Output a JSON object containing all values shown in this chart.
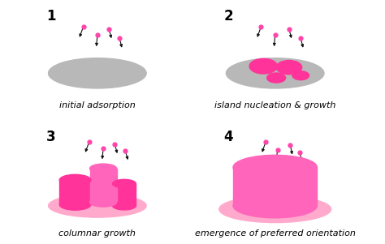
{
  "background_color": "#ffffff",
  "panel_labels": [
    "1",
    "2",
    "3",
    "4"
  ],
  "captions": [
    "initial adsorption",
    "island nucleation & growth",
    "columnar growth",
    "emergence of preferred orientation"
  ],
  "gray_color": "#b8b8b8",
  "pink_light": "#ffaacc",
  "pink_dark": "#ff3399",
  "pink_medium": "#ff66bb",
  "arrow_color": "#111111",
  "dot_color": "#ff44aa",
  "label_fontsize": 12,
  "caption_fontsize": 8.0
}
